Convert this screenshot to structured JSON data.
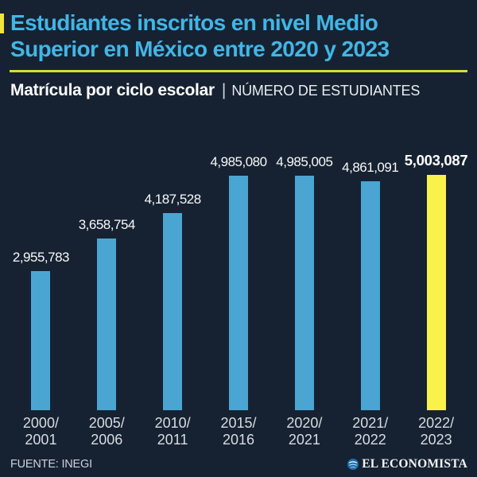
{
  "header": {
    "title": "Estudiantes inscritos en nivel Medio Superior en México entre 2020 y 2023",
    "subtitle_bold": "Matrícula por ciclo escolar",
    "subtitle_separator": "|",
    "subtitle_regular": "NÚMERO DE ESTUDIANTES"
  },
  "footer": {
    "source": "FUENTE: INEGI",
    "brand": "EL ECONOMISTA"
  },
  "colors": {
    "background": "#162232",
    "title": "#41B6E6",
    "accent_yellow": "#F2E33C",
    "divider_yellow": "#D9DA3A",
    "bar_blue": "#4AA5D2",
    "bar_highlight": "#F8F24A",
    "axis_label": "#D7DCE1",
    "value_label": "#F7F9FA"
  },
  "chart_data": {
    "type": "bar",
    "title": "Estudiantes inscritos en nivel Medio Superior en México entre 2020 y 2023",
    "subtitle": "Matrícula por ciclo escolar | Número de estudiantes",
    "categories": [
      "2000/2001",
      "2005/2006",
      "2010/2011",
      "2015/2016",
      "2020/2021",
      "2021/2022",
      "2022/2023"
    ],
    "values": [
      2955783,
      3658754,
      4187528,
      4985080,
      4985005,
      4861091,
      5003087
    ],
    "value_labels": [
      "2,955,783",
      "3,658,754",
      "4,187,528",
      "4,985,080",
      "4,985,005",
      "4,861,091",
      "5,003,087"
    ],
    "highlight_index": 6,
    "xlabel": "Ciclo escolar",
    "ylabel": "Número de estudiantes",
    "ylim": [
      0,
      5003087
    ],
    "grid": false,
    "legend": false,
    "source": "INEGI"
  }
}
